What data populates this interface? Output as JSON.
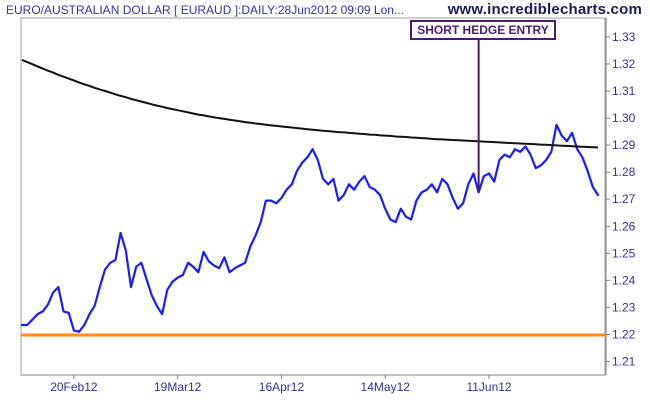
{
  "header": {
    "title": "EURO/AUSTRALIAN DOLLAR [ EURAUD ]:DAILY:28Jun2012 09:09 Lon...",
    "site": "www.incrediblecharts.com"
  },
  "annotation": {
    "label": "SHORT HEDGE ENTRY",
    "date_index": 88
  },
  "colors": {
    "price": "#1a1aff",
    "moving_average": "#111111",
    "support": "#ff8c1a",
    "annotation": "#4b1c6e",
    "axis_text": "#333399",
    "frame": "#a0a0a0"
  },
  "chart_data": {
    "type": "line",
    "title": "EURO/AUSTRALIAN DOLLAR [ EURAUD ]:DAILY:28Jun2012 09:09 Lon...",
    "xlabel": "",
    "ylabel": "",
    "x_tick_labels": [
      "20Feb12",
      "19Mar12",
      "16Apr12",
      "14May12",
      "11Jun12"
    ],
    "x_tick_index": [
      10,
      30,
      50,
      70,
      90
    ],
    "y_ticks": [
      1.21,
      1.22,
      1.23,
      1.24,
      1.25,
      1.26,
      1.27,
      1.28,
      1.29,
      1.3,
      1.31,
      1.32,
      1.33
    ],
    "ylim": [
      1.205,
      1.337
    ],
    "x_count": 112,
    "grid": false,
    "legend": "none",
    "series": [
      {
        "kind": "price",
        "values": [
          1.2235,
          1.2235,
          1.2255,
          1.2275,
          1.2285,
          1.231,
          1.2355,
          1.2375,
          1.2285,
          1.228,
          1.2215,
          1.221,
          1.2235,
          1.2275,
          1.2305,
          1.2375,
          1.244,
          1.2465,
          1.2475,
          1.2575,
          1.251,
          1.2375,
          1.245,
          1.2465,
          1.2405,
          1.2345,
          1.2305,
          1.2275,
          1.2365,
          1.2395,
          1.241,
          1.242,
          1.2465,
          1.245,
          1.243,
          1.2505,
          1.247,
          1.2455,
          1.2445,
          1.2485,
          1.243,
          1.2445,
          1.2455,
          1.2465,
          1.2525,
          1.2565,
          1.2615,
          1.2695,
          1.2695,
          1.2685,
          1.2705,
          1.2735,
          1.2755,
          1.2805,
          1.2835,
          1.2855,
          1.2885,
          1.2845,
          1.2775,
          1.2755,
          1.2775,
          1.2695,
          1.2715,
          1.2755,
          1.2735,
          1.2765,
          1.2785,
          1.2745,
          1.2735,
          1.2715,
          1.2665,
          1.2625,
          1.2615,
          1.2665,
          1.2635,
          1.2625,
          1.2695,
          1.2725,
          1.2735,
          1.2755,
          1.2725,
          1.2775,
          1.2755,
          1.2705,
          1.2665,
          1.2685,
          1.2755,
          1.2795,
          1.2725,
          1.2785,
          1.2795,
          1.2765,
          1.2845,
          1.2865,
          1.2855,
          1.2885,
          1.2875,
          1.2895,
          1.2865,
          1.2815,
          1.2825,
          1.2845,
          1.2875,
          1.2975,
          1.2935,
          1.2915,
          1.2945,
          1.2885,
          1.2855,
          1.2805,
          1.2745,
          1.2715
        ]
      },
      {
        "kind": "moving_average",
        "values": [
          1.3215,
          1.3207,
          1.3199,
          1.3191,
          1.3183,
          1.3175,
          1.3168,
          1.316,
          1.3153,
          1.3146,
          1.3139,
          1.3132,
          1.3125,
          1.3119,
          1.3112,
          1.3106,
          1.31,
          1.3094,
          1.3088,
          1.3082,
          1.3077,
          1.3071,
          1.3066,
          1.3061,
          1.3056,
          1.3051,
          1.3046,
          1.3042,
          1.3037,
          1.3033,
          1.3029,
          1.3025,
          1.3021,
          1.3017,
          1.3013,
          1.301,
          1.3006,
          1.3003,
          1.3,
          1.2997,
          1.2994,
          1.2991,
          1.2988,
          1.2985,
          1.2983,
          1.298,
          1.2978,
          1.2975,
          1.2973,
          1.2971,
          1.2969,
          1.2967,
          1.2965,
          1.2963,
          1.2961,
          1.2959,
          1.2957,
          1.2955,
          1.2953,
          1.2952,
          1.295,
          1.2948,
          1.2947,
          1.2945,
          1.2944,
          1.2942,
          1.2941,
          1.2939,
          1.2938,
          1.2936,
          1.2935,
          1.2934,
          1.2932,
          1.2931,
          1.293,
          1.2928,
          1.2927,
          1.2926,
          1.2925,
          1.2923,
          1.2922,
          1.2921,
          1.292,
          1.2919,
          1.2918,
          1.2917,
          1.2916,
          1.2915,
          1.2914,
          1.2913,
          1.2912,
          1.2911,
          1.291,
          1.2909,
          1.2908,
          1.2907,
          1.2906,
          1.2905,
          1.2904,
          1.2903,
          1.2902,
          1.2901,
          1.29,
          1.2899,
          1.2898,
          1.2897,
          1.2896,
          1.2895,
          1.2894,
          1.2893,
          1.2892,
          1.2891
        ]
      },
      {
        "kind": "support",
        "values": [
          1.2198
        ]
      }
    ]
  }
}
